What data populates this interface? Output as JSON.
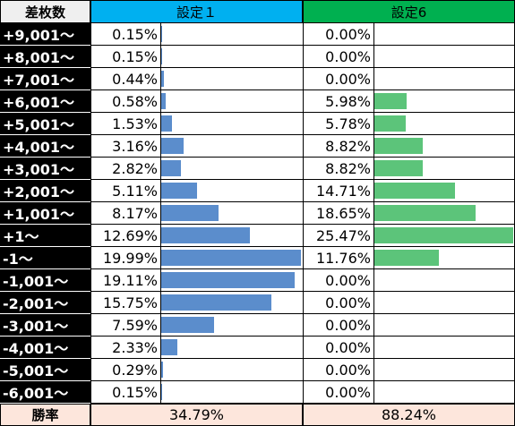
{
  "header": {
    "label": "差枚数",
    "s1": "設定１",
    "s6": "設定6"
  },
  "colors": {
    "s1_header": "#00b0f0",
    "s6_header": "#00b050",
    "bar_s1": "#5b8dcc",
    "bar_s6": "#5cc47a",
    "footer_bg": "#fde6dc"
  },
  "rows": [
    {
      "label": "+9,001～",
      "s1": "0.15%",
      "s1_value": 0.15,
      "s6": "0.00%",
      "s6_value": 0.0
    },
    {
      "label": "+8,001～",
      "s1": "0.15%",
      "s1_value": 0.15,
      "s6": "0.00%",
      "s6_value": 0.0
    },
    {
      "label": "+7,001～",
      "s1": "0.44%",
      "s1_value": 0.44,
      "s6": "0.00%",
      "s6_value": 0.0
    },
    {
      "label": "+6,001～",
      "s1": "0.58%",
      "s1_value": 0.58,
      "s6": "5.98%",
      "s6_value": 5.98
    },
    {
      "label": "+5,001～",
      "s1": "1.53%",
      "s1_value": 1.53,
      "s6": "5.78%",
      "s6_value": 5.78
    },
    {
      "label": "+4,001～",
      "s1": "3.16%",
      "s1_value": 3.16,
      "s6": "8.82%",
      "s6_value": 8.82
    },
    {
      "label": "+3,001～",
      "s1": "2.82%",
      "s1_value": 2.82,
      "s6": "8.82%",
      "s6_value": 8.82
    },
    {
      "label": "+2,001～",
      "s1": "5.11%",
      "s1_value": 5.11,
      "s6": "14.71%",
      "s6_value": 14.71
    },
    {
      "label": "+1,001～",
      "s1": "8.17%",
      "s1_value": 8.17,
      "s6": "18.65%",
      "s6_value": 18.65
    },
    {
      "label": "+1～",
      "s1": "12.69%",
      "s1_value": 12.69,
      "s6": "25.47%",
      "s6_value": 25.47
    },
    {
      "label": "-1～",
      "s1": "19.99%",
      "s1_value": 19.99,
      "s6": "11.76%",
      "s6_value": 11.76
    },
    {
      "label": "-1,001～",
      "s1": "19.11%",
      "s1_value": 19.11,
      "s6": "0.00%",
      "s6_value": 0.0
    },
    {
      "label": "-2,001～",
      "s1": "15.75%",
      "s1_value": 15.75,
      "s6": "0.00%",
      "s6_value": 0.0
    },
    {
      "label": "-3,001～",
      "s1": "7.59%",
      "s1_value": 7.59,
      "s6": "0.00%",
      "s6_value": 0.0
    },
    {
      "label": "-4,001～",
      "s1": "2.33%",
      "s1_value": 2.33,
      "s6": "0.00%",
      "s6_value": 0.0
    },
    {
      "label": "-5,001～",
      "s1": "0.29%",
      "s1_value": 0.29,
      "s6": "0.00%",
      "s6_value": 0.0
    },
    {
      "label": "-6,001～",
      "s1": "0.15%",
      "s1_value": 0.15,
      "s6": "0.00%",
      "s6_value": 0.0
    }
  ],
  "footer": {
    "label": "勝率",
    "s1": "34.79%",
    "s6": "88.24%"
  }
}
